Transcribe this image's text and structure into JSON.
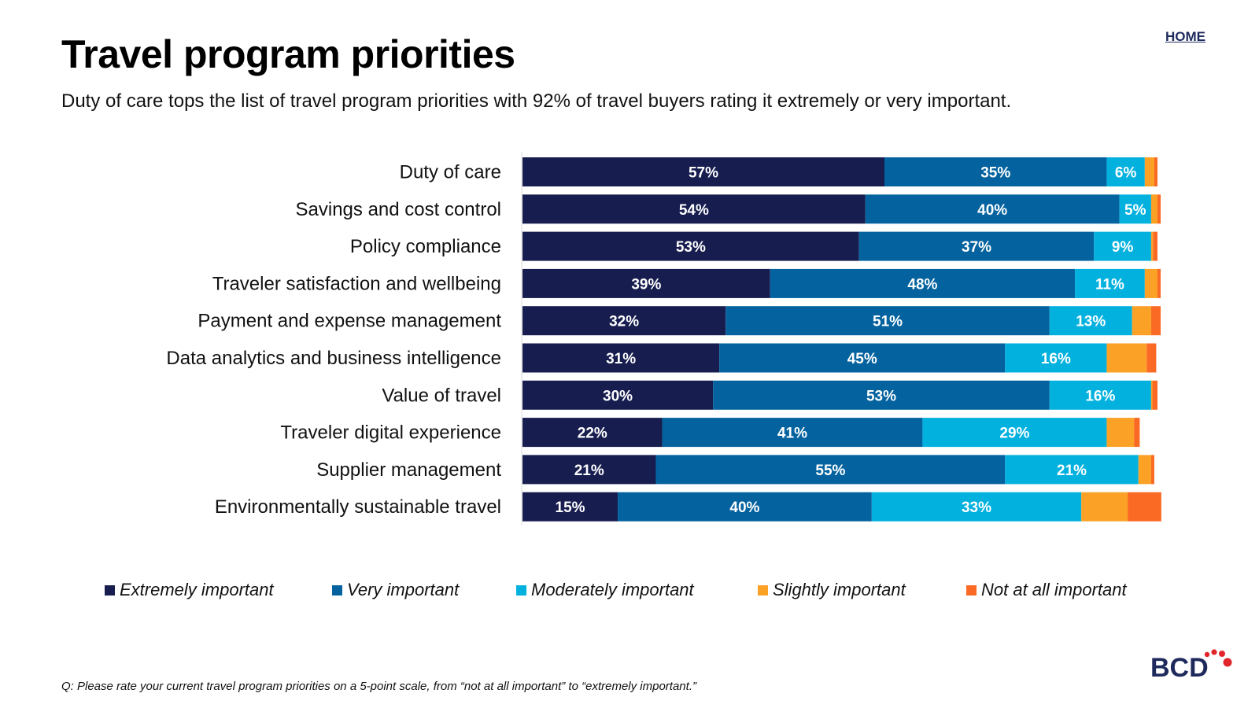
{
  "header": {
    "home_label": "HOME",
    "title": "Travel program priorities",
    "subtitle": "Duty of care tops the list of travel program priorities with 92% of travel buyers rating it extremely or very important."
  },
  "chart_data": {
    "type": "bar",
    "orientation": "horizontal",
    "stacked": true,
    "categories": [
      "Duty of care",
      "Savings and cost control",
      "Policy compliance",
      "Traveler satisfaction and wellbeing",
      "Payment and expense management",
      "Data analytics and business intelligence",
      "Value of travel",
      "Traveler digital experience",
      "Supplier management",
      "Environmentally sustainable travel"
    ],
    "series": [
      {
        "name": "Extremely important",
        "color": "#171d4f",
        "values": [
          57,
          54,
          53,
          39,
          32,
          31,
          30,
          22,
          21,
          15
        ]
      },
      {
        "name": "Very important",
        "color": "#04639f",
        "values": [
          35,
          40,
          37,
          48,
          51,
          45,
          53,
          41,
          55,
          40
        ]
      },
      {
        "name": "Moderately important",
        "color": "#03b1df",
        "values": [
          6,
          5,
          9,
          11,
          13,
          16,
          16,
          29,
          21,
          33
        ]
      },
      {
        "name": "Slightly important",
        "color": "#fba226",
        "values": [
          1.5,
          1,
          0.3,
          2,
          3,
          6.3,
          0.2,
          4.3,
          2,
          7.3
        ]
      },
      {
        "name": "Not at all important",
        "color": "#fb6a24",
        "values": [
          0.5,
          0.5,
          0.7,
          0.5,
          1.5,
          1.5,
          0.8,
          0.9,
          0.5,
          5.3
        ]
      }
    ],
    "data_labels": [
      [
        "57%",
        "35%",
        "6%"
      ],
      [
        "54%",
        "40%",
        "5%"
      ],
      [
        "53%",
        "37%",
        "9%"
      ],
      [
        "39%",
        "48%",
        "11%"
      ],
      [
        "32%",
        "51%",
        "13%"
      ],
      [
        "31%",
        "45%",
        "16%"
      ],
      [
        "30%",
        "53%",
        "16%"
      ],
      [
        "22%",
        "41%",
        "29%"
      ],
      [
        "21%",
        "55%",
        "21%"
      ],
      [
        "15%",
        "40%",
        "33%"
      ]
    ],
    "xlim": [
      0,
      100
    ],
    "grid": false,
    "legend_position": "bottom"
  },
  "footnote": "Q: Please rate your current travel program priorities on a 5-point scale, from “not at all important” to “extremely important.”",
  "logo": {
    "text": "BCD",
    "accent_color": "#e2252b"
  }
}
